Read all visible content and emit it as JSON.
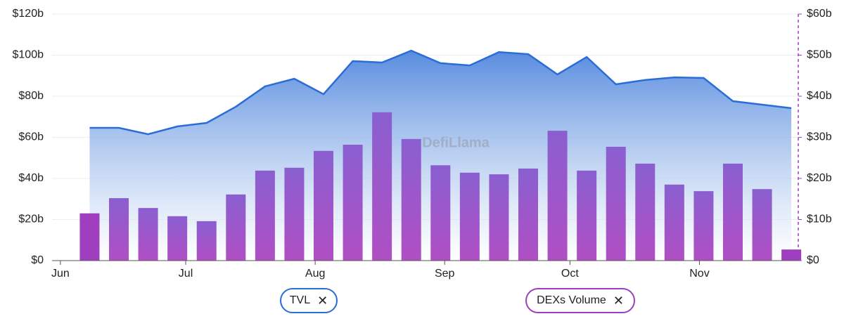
{
  "chart_data": {
    "type": "combo",
    "watermark": "DefiLlama",
    "x": [
      7,
      14,
      21,
      28,
      35,
      42,
      49,
      56,
      63,
      70,
      77,
      84,
      91,
      98,
      105,
      112,
      119,
      126,
      133,
      140,
      147,
      154,
      161,
      168,
      175
    ],
    "xlim": [
      -2,
      177
    ],
    "xticks": [
      {
        "value": 0,
        "label": "Jun"
      },
      {
        "value": 30,
        "label": "Jul"
      },
      {
        "value": 61,
        "label": "Aug"
      },
      {
        "value": 92,
        "label": "Sep"
      },
      {
        "value": 122,
        "label": "Oct"
      },
      {
        "value": 153,
        "label": "Nov"
      }
    ],
    "ylim": [
      0,
      120
    ],
    "yticks": [
      {
        "value": 0,
        "label": "$0"
      },
      {
        "value": 20,
        "label": "$20b"
      },
      {
        "value": 40,
        "label": "$40b"
      },
      {
        "value": 60,
        "label": "$60b"
      },
      {
        "value": 80,
        "label": "$80b"
      },
      {
        "value": 100,
        "label": "$100b"
      },
      {
        "value": 120,
        "label": "$120b"
      }
    ],
    "y2lim": [
      0,
      60
    ],
    "y2ticks": [
      {
        "value": 0,
        "label": "$0"
      },
      {
        "value": 10,
        "label": "$10b"
      },
      {
        "value": 20,
        "label": "$20b"
      },
      {
        "value": 30,
        "label": "$30b"
      },
      {
        "value": 40,
        "label": "$40b"
      },
      {
        "value": 50,
        "label": "$50b"
      },
      {
        "value": 60,
        "label": "$60b"
      }
    ],
    "grid": true,
    "series": [
      {
        "name": "TVL",
        "type": "area",
        "color": "#2a6dd6",
        "values": [
          64.6,
          64.6,
          61.5,
          65.3,
          67,
          74.9,
          84.8,
          88.5,
          81,
          97.1,
          96.4,
          102.2,
          96.1,
          95,
          101.5,
          100.5,
          90.6,
          99.1,
          85.8,
          87.9,
          89.2,
          88.9,
          77.6,
          75.9,
          74.2
        ]
      },
      {
        "name": "DEXs Volume",
        "type": "bar",
        "axis": "y2",
        "color": "#9f3fc0",
        "values": [
          11.5,
          15.2,
          12.8,
          10.8,
          9.6,
          16.1,
          21.9,
          22.6,
          26.7,
          28.2,
          36.1,
          29.6,
          23.2,
          21.4,
          21,
          22.4,
          31.6,
          21.9,
          27.7,
          23.6,
          18.5,
          16.9,
          23.6,
          17.4,
          2.7
        ]
      }
    ]
  }
}
